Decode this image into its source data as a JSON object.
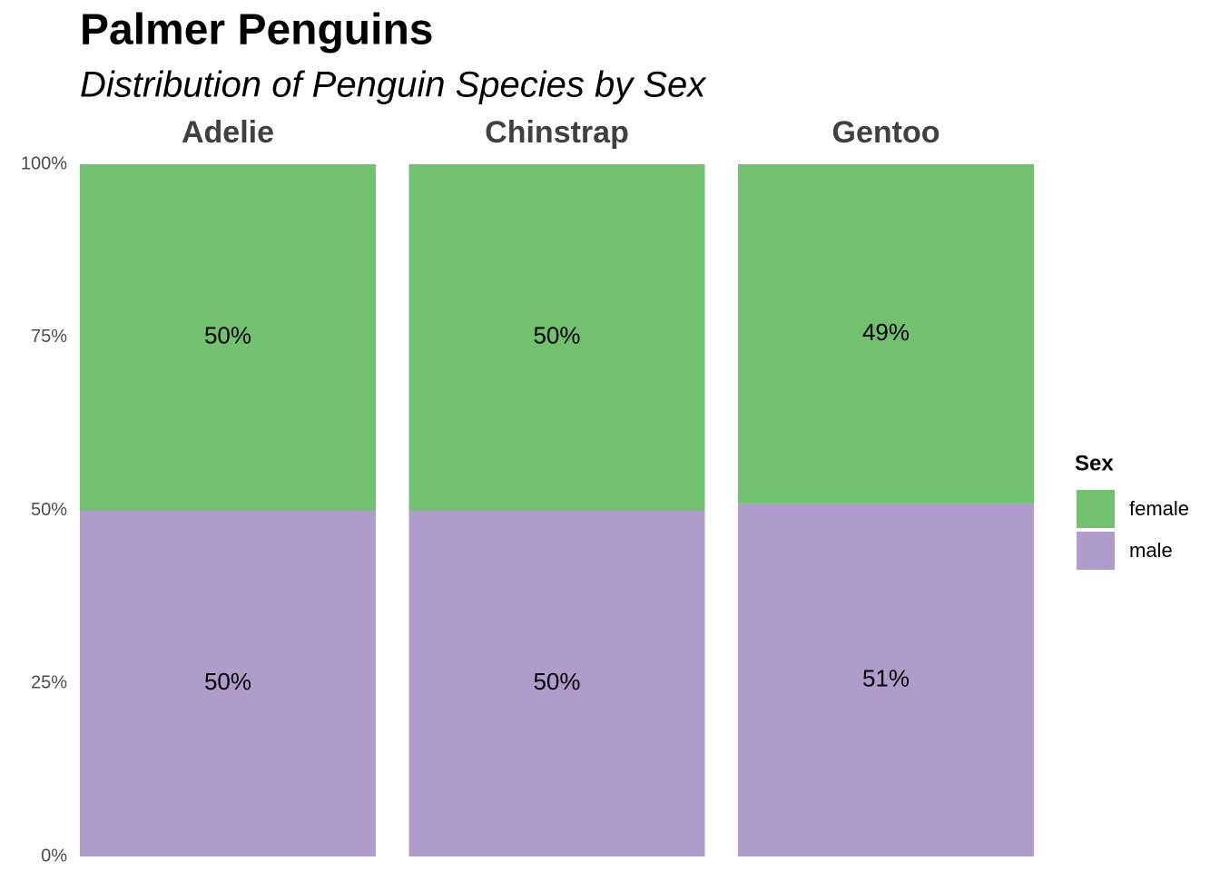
{
  "chart_data": {
    "type": "bar",
    "stacked": true,
    "title": "Palmer Penguins",
    "subtitle": "Distribution of Penguin Species by Sex",
    "categories": [
      "Adelie",
      "Chinstrap",
      "Gentoo"
    ],
    "series": [
      {
        "name": "female",
        "color": "#71c16f",
        "values": [
          50,
          50,
          49
        ],
        "value_labels": [
          "50%",
          "50%",
          "49%"
        ]
      },
      {
        "name": "male",
        "color": "#af9ccb",
        "values": [
          50,
          50,
          51
        ],
        "value_labels": [
          "50%",
          "50%",
          "51%"
        ]
      }
    ],
    "ylim": [
      0,
      100
    ],
    "yticks": [
      {
        "value": 0,
        "label": "0%"
      },
      {
        "value": 25,
        "label": "25%"
      },
      {
        "value": 50,
        "label": "50%"
      },
      {
        "value": 75,
        "label": "75%"
      },
      {
        "value": 100,
        "label": "100%"
      }
    ],
    "grid": false,
    "legend_title": "Sex",
    "legend": "right"
  }
}
